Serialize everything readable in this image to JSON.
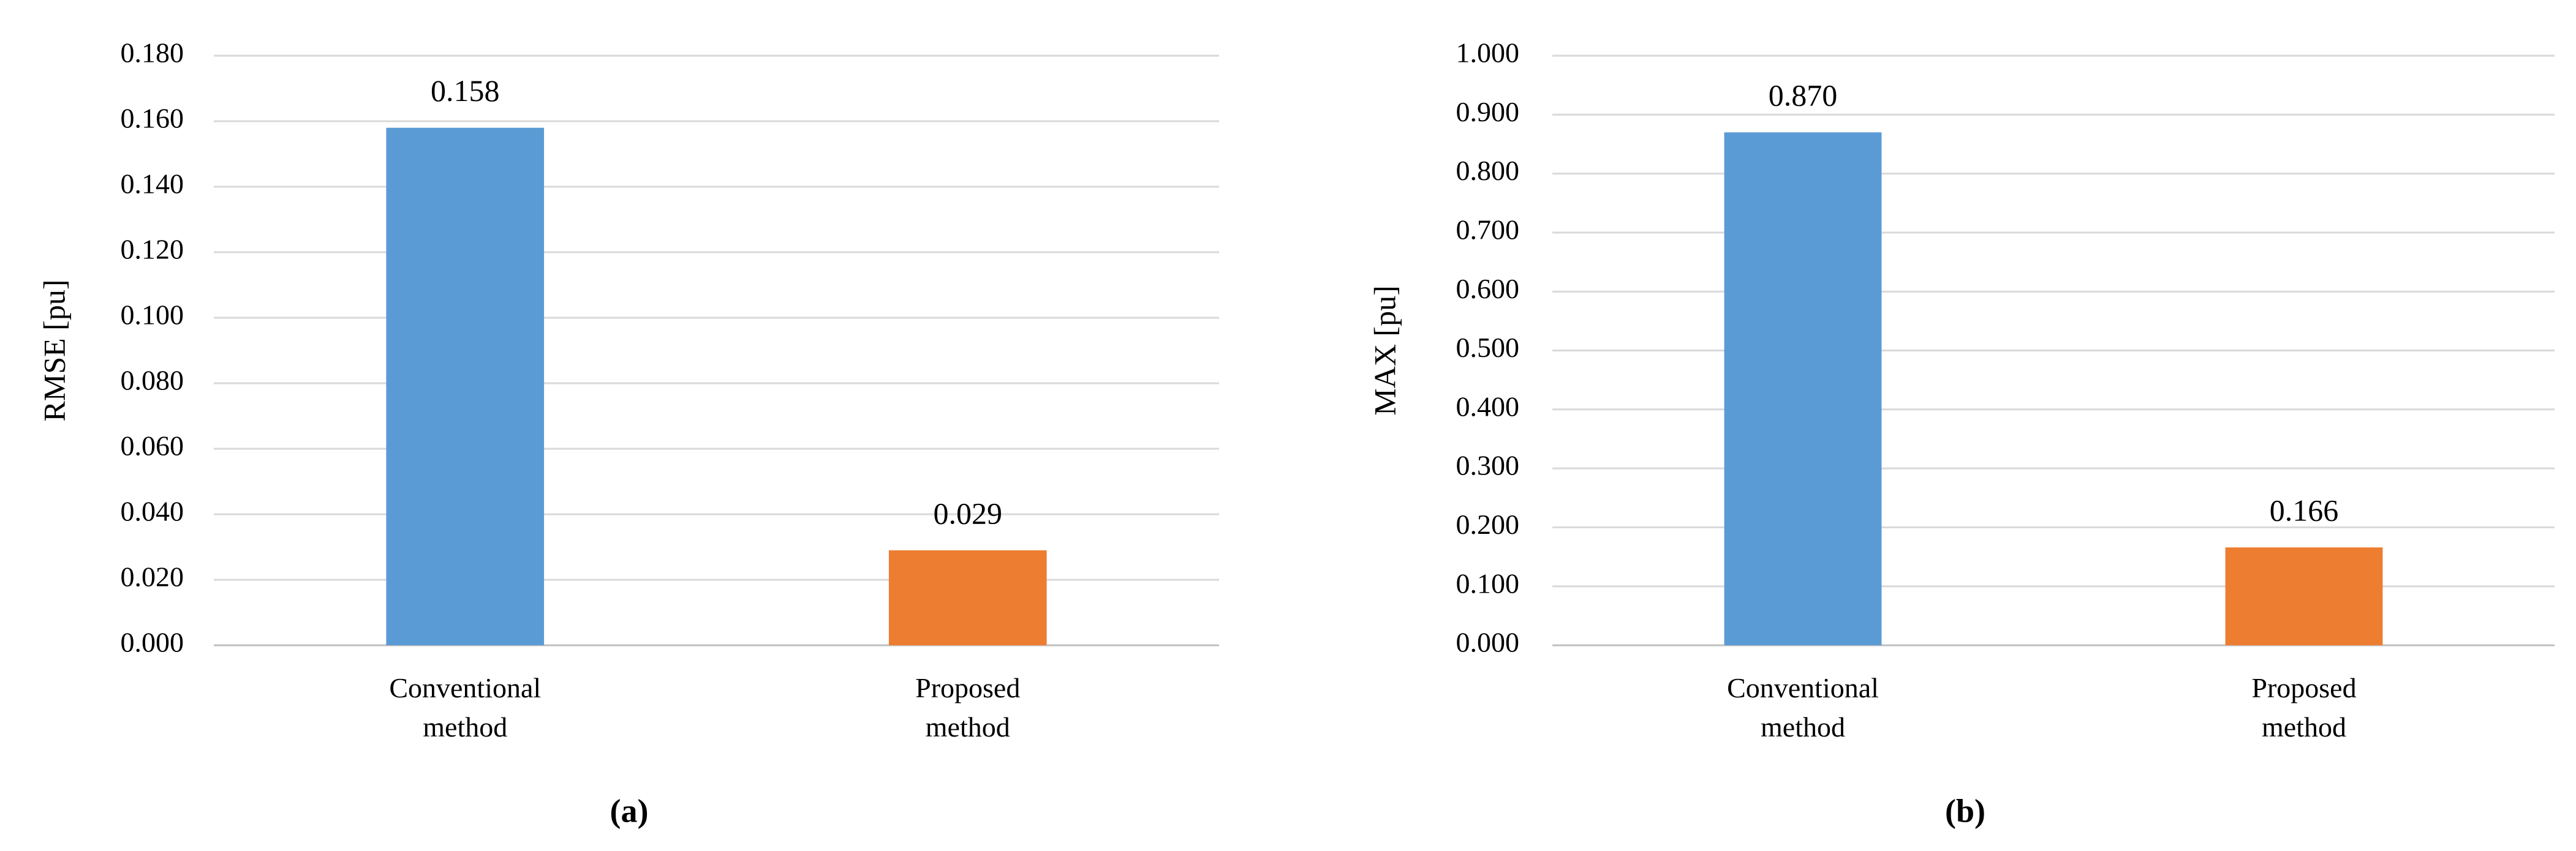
{
  "chart_data": [
    {
      "type": "bar",
      "panel_label": "(a)",
      "ylabel": "RMSE [pu]",
      "categories": [
        "Conventional method",
        "Proposed method"
      ],
      "values": [
        0.158,
        0.029
      ],
      "colors": [
        "#5b9bd5",
        "#ed7d31"
      ],
      "ylim": [
        0,
        0.18
      ],
      "yticks": [
        {
          "value": 0,
          "label": "0.000"
        },
        {
          "value": 0.02,
          "label": "0.020"
        },
        {
          "value": 0.04,
          "label": "0.040"
        },
        {
          "value": 0.06,
          "label": "0.060"
        },
        {
          "value": 0.08,
          "label": "0.080"
        },
        {
          "value": 0.1,
          "label": "0.100"
        },
        {
          "value": 0.12,
          "label": "0.120"
        },
        {
          "value": 0.14,
          "label": "0.140"
        },
        {
          "value": 0.16,
          "label": "0.160"
        },
        {
          "value": 0.18,
          "label": "0.180"
        }
      ],
      "grid": true
    },
    {
      "type": "bar",
      "panel_label": "(b)",
      "ylabel": "MAX [pu]",
      "categories": [
        "Conventional method",
        "Proposed method"
      ],
      "values": [
        0.87,
        0.166
      ],
      "value_labels": [
        "0.870",
        "0.166"
      ],
      "colors": [
        "#5b9bd5",
        "#ed7d31"
      ],
      "ylim": [
        0,
        1
      ],
      "yticks": [
        {
          "value": 0,
          "label": "0.000"
        },
        {
          "value": 0.1,
          "label": "0.100"
        },
        {
          "value": 0.2,
          "label": "0.200"
        },
        {
          "value": 0.3,
          "label": "0.300"
        },
        {
          "value": 0.4,
          "label": "0.400"
        },
        {
          "value": 0.5,
          "label": "0.500"
        },
        {
          "value": 0.6,
          "label": "0.600"
        },
        {
          "value": 0.7,
          "label": "0.700"
        },
        {
          "value": 0.8,
          "label": "0.800"
        },
        {
          "value": 0.9,
          "label": "0.900"
        },
        {
          "value": 1,
          "label": "1.000"
        }
      ],
      "grid": true
    }
  ]
}
